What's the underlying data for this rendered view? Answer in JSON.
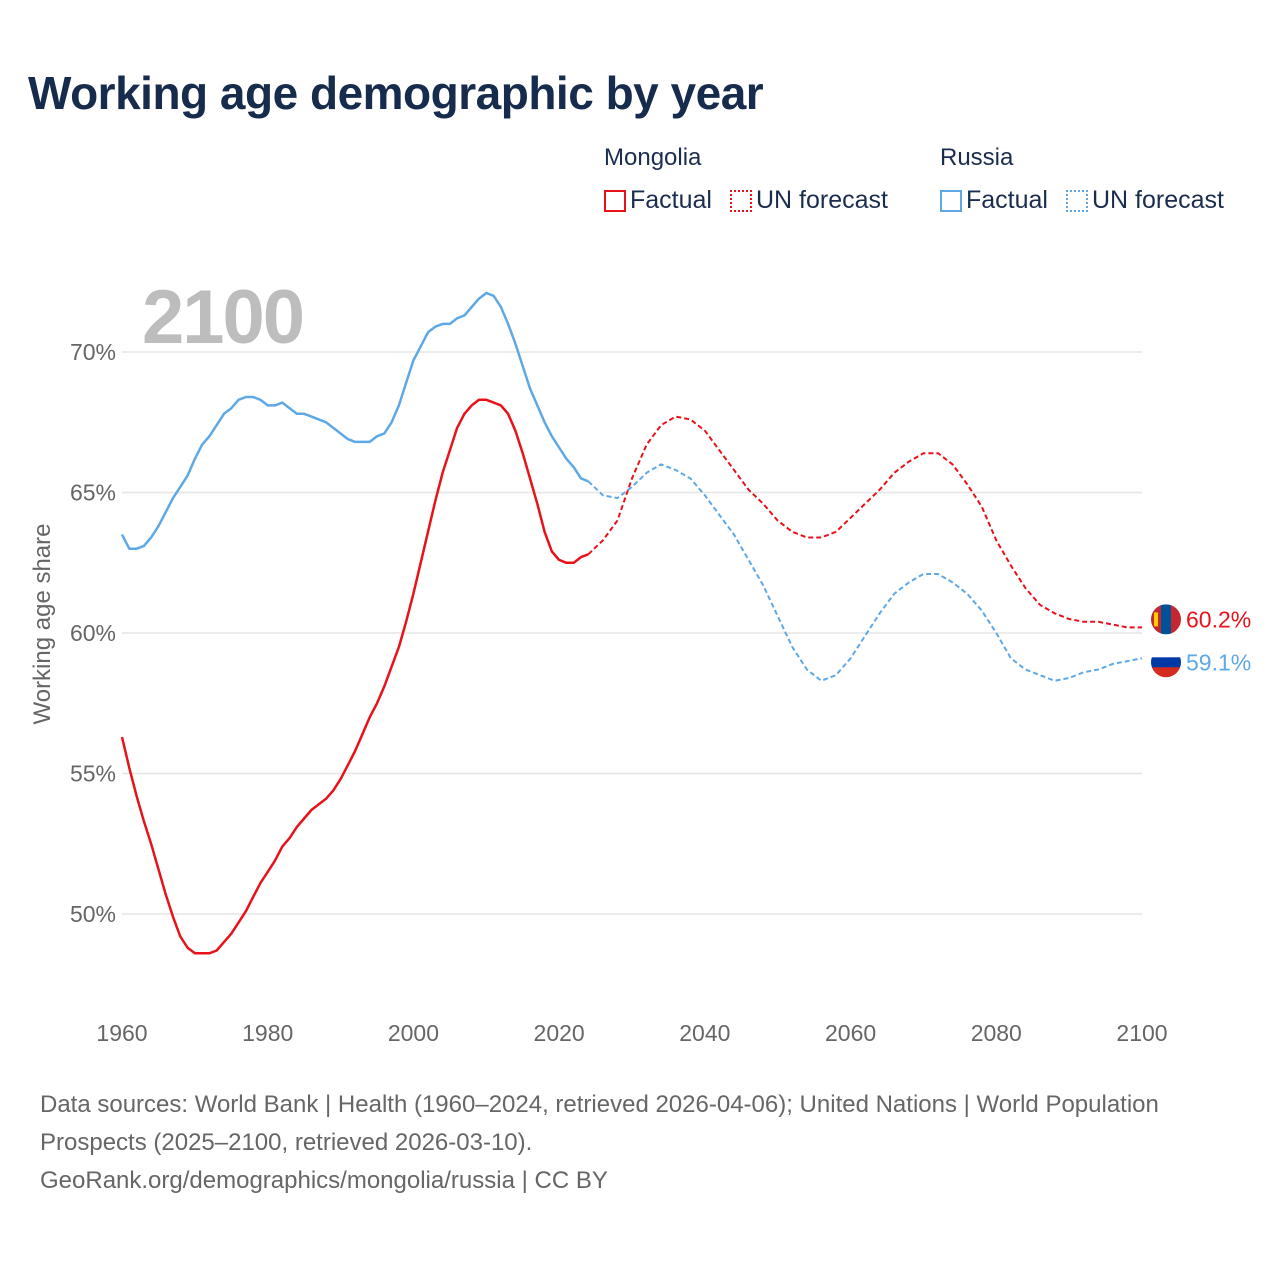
{
  "title": "Working age demographic by year",
  "legend": {
    "groups": [
      {
        "country": "Mongolia",
        "factual_label": "Factual",
        "forecast_label": "UN forecast",
        "color": "#e8121a"
      },
      {
        "country": "Russia",
        "factual_label": "Factual",
        "forecast_label": "UN forecast",
        "color": "#5fa8e6"
      }
    ]
  },
  "footer": {
    "sources": "Data sources: World Bank | Health (1960–2024, retrieved 2026-04-06); United Nations | World Population Prospects (2025–2100, retrieved 2026-03-10).",
    "attribution": "GeoRank.org/demographics/mongolia/russia | CC BY"
  },
  "chart_data": {
    "type": "line",
    "title": "Working age demographic by year",
    "watermark_label": "2100",
    "xlabel": "",
    "ylabel": "Working age share",
    "xlim": [
      1960,
      2100
    ],
    "ylim": [
      47,
      73
    ],
    "x_ticks": [
      1960,
      1980,
      2000,
      2020,
      2040,
      2060,
      2080,
      2100
    ],
    "x_tick_labels": [
      "1960",
      "1980",
      "2000",
      "2020",
      "2040",
      "2060",
      "2080",
      "2100"
    ],
    "y_ticks": [
      50,
      55,
      60,
      65,
      70
    ],
    "y_tick_labels": [
      "50%",
      "55%",
      "60%",
      "65%",
      "70%"
    ],
    "grid": true,
    "legend_position": "top-right",
    "series": [
      {
        "name": "Mongolia",
        "color": "#e8121a",
        "flag_colors": [
          "#c4272f",
          "#015197",
          "#c4272f"
        ],
        "end_label": "60.2%",
        "factual": {
          "x": [
            1960,
            1961,
            1962,
            1963,
            1964,
            1965,
            1966,
            1967,
            1968,
            1969,
            1970,
            1971,
            1972,
            1973,
            1974,
            1975,
            1976,
            1977,
            1978,
            1979,
            1980,
            1981,
            1982,
            1983,
            1984,
            1985,
            1986,
            1987,
            1988,
            1989,
            1990,
            1991,
            1992,
            1993,
            1994,
            1995,
            1996,
            1997,
            1998,
            1999,
            2000,
            2001,
            2002,
            2003,
            2004,
            2005,
            2006,
            2007,
            2008,
            2009,
            2010,
            2011,
            2012,
            2013,
            2014,
            2015,
            2016,
            2017,
            2018,
            2019,
            2020,
            2021,
            2022,
            2023,
            2024
          ],
          "y": [
            56.3,
            55.2,
            54.2,
            53.3,
            52.5,
            51.6,
            50.7,
            49.9,
            49.2,
            48.8,
            48.6,
            48.6,
            48.6,
            48.7,
            49.0,
            49.3,
            49.7,
            50.1,
            50.6,
            51.1,
            51.5,
            51.9,
            52.4,
            52.7,
            53.1,
            53.4,
            53.7,
            53.9,
            54.1,
            54.4,
            54.8,
            55.3,
            55.8,
            56.4,
            57.0,
            57.5,
            58.1,
            58.8,
            59.5,
            60.4,
            61.4,
            62.5,
            63.6,
            64.7,
            65.7,
            66.5,
            67.3,
            67.8,
            68.1,
            68.3,
            68.3,
            68.2,
            68.1,
            67.8,
            67.2,
            66.4,
            65.5,
            64.6,
            63.6,
            62.9,
            62.6,
            62.5,
            62.5,
            62.7,
            62.8
          ]
        },
        "forecast": {
          "x": [
            2024,
            2026,
            2028,
            2030,
            2032,
            2034,
            2036,
            2038,
            2040,
            2042,
            2044,
            2046,
            2048,
            2050,
            2052,
            2054,
            2056,
            2058,
            2060,
            2062,
            2064,
            2066,
            2068,
            2070,
            2072,
            2074,
            2076,
            2078,
            2080,
            2082,
            2084,
            2086,
            2088,
            2090,
            2092,
            2094,
            2096,
            2098,
            2100
          ],
          "y": [
            62.8,
            63.3,
            64.0,
            65.5,
            66.7,
            67.4,
            67.7,
            67.6,
            67.2,
            66.5,
            65.8,
            65.1,
            64.6,
            64.0,
            63.6,
            63.4,
            63.4,
            63.6,
            64.1,
            64.6,
            65.1,
            65.7,
            66.1,
            66.4,
            66.4,
            66.0,
            65.3,
            64.5,
            63.3,
            62.4,
            61.6,
            61.0,
            60.7,
            60.5,
            60.4,
            60.4,
            60.3,
            60.2,
            60.2
          ]
        }
      },
      {
        "name": "Russia",
        "color": "#5fa8e6",
        "flag_colors": [
          "#ffffff",
          "#0039a6",
          "#d52b1e"
        ],
        "end_label": "59.1%",
        "factual": {
          "x": [
            1960,
            1961,
            1962,
            1963,
            1964,
            1965,
            1966,
            1967,
            1968,
            1969,
            1970,
            1971,
            1972,
            1973,
            1974,
            1975,
            1976,
            1977,
            1978,
            1979,
            1980,
            1981,
            1982,
            1983,
            1984,
            1985,
            1986,
            1987,
            1988,
            1989,
            1990,
            1991,
            1992,
            1993,
            1994,
            1995,
            1996,
            1997,
            1998,
            1999,
            2000,
            2001,
            2002,
            2003,
            2004,
            2005,
            2006,
            2007,
            2008,
            2009,
            2010,
            2011,
            2012,
            2013,
            2014,
            2015,
            2016,
            2017,
            2018,
            2019,
            2020,
            2021,
            2022,
            2023,
            2024
          ],
          "y": [
            63.5,
            63.0,
            63.0,
            63.1,
            63.4,
            63.8,
            64.3,
            64.8,
            65.2,
            65.6,
            66.2,
            66.7,
            67.0,
            67.4,
            67.8,
            68.0,
            68.3,
            68.4,
            68.4,
            68.3,
            68.1,
            68.1,
            68.2,
            68.0,
            67.8,
            67.8,
            67.7,
            67.6,
            67.5,
            67.3,
            67.1,
            66.9,
            66.8,
            66.8,
            66.8,
            67.0,
            67.1,
            67.5,
            68.1,
            68.9,
            69.7,
            70.2,
            70.7,
            70.9,
            71.0,
            71.0,
            71.2,
            71.3,
            71.6,
            71.9,
            72.1,
            72.0,
            71.6,
            71.0,
            70.3,
            69.5,
            68.7,
            68.1,
            67.5,
            67.0,
            66.6,
            66.2,
            65.9,
            65.5,
            65.4
          ]
        },
        "forecast": {
          "x": [
            2024,
            2026,
            2028,
            2030,
            2032,
            2034,
            2036,
            2038,
            2040,
            2042,
            2044,
            2046,
            2048,
            2050,
            2052,
            2054,
            2056,
            2058,
            2060,
            2062,
            2064,
            2066,
            2068,
            2070,
            2072,
            2074,
            2076,
            2078,
            2080,
            2082,
            2084,
            2086,
            2088,
            2090,
            2092,
            2094,
            2096,
            2098,
            2100
          ],
          "y": [
            65.4,
            64.9,
            64.8,
            65.2,
            65.7,
            66.0,
            65.8,
            65.5,
            64.9,
            64.2,
            63.5,
            62.6,
            61.7,
            60.6,
            59.5,
            58.7,
            58.3,
            58.5,
            59.1,
            59.9,
            60.7,
            61.4,
            61.8,
            62.1,
            62.1,
            61.8,
            61.4,
            60.8,
            60.0,
            59.1,
            58.7,
            58.5,
            58.3,
            58.4,
            58.6,
            58.7,
            58.9,
            59.0,
            59.1
          ]
        }
      }
    ]
  }
}
